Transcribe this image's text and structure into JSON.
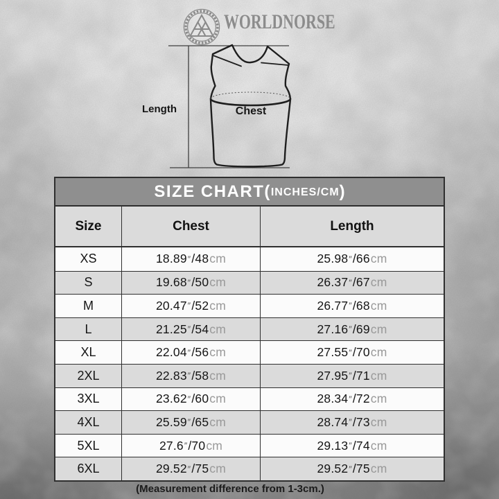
{
  "brand": {
    "name": "WORLDNORSE",
    "logo": "valknut-icon"
  },
  "diagram": {
    "length_label": "Length",
    "chest_label": "Chest"
  },
  "size_chart": {
    "title_main": "SIZE CHART(",
    "title_small": "INCHES/CM",
    "title_close": ")",
    "columns": [
      "Size",
      "Chest",
      "Length"
    ],
    "units": {
      "inch_mark": "″",
      "cm": "cm"
    },
    "rows": [
      {
        "size": "XS",
        "chest_in": "18.89",
        "chest_cm": "48",
        "length_in": "25.98",
        "length_cm": "66"
      },
      {
        "size": "S",
        "chest_in": "19.68",
        "chest_cm": "50",
        "length_in": "26.37",
        "length_cm": "67"
      },
      {
        "size": "M",
        "chest_in": "20.47",
        "chest_cm": "52",
        "length_in": "26.77",
        "length_cm": "68"
      },
      {
        "size": "L",
        "chest_in": "21.25",
        "chest_cm": "54",
        "length_in": "27.16",
        "length_cm": "69"
      },
      {
        "size": "XL",
        "chest_in": "22.04",
        "chest_cm": "56",
        "length_in": "27.55",
        "length_cm": "70"
      },
      {
        "size": "2XL",
        "chest_in": "22.83",
        "chest_cm": "58",
        "length_in": "27.95",
        "length_cm": "71"
      },
      {
        "size": "3XL",
        "chest_in": "23.62",
        "chest_cm": "60",
        "length_in": "28.34",
        "length_cm": "72"
      },
      {
        "size": "4XL",
        "chest_in": "25.59",
        "chest_cm": "65",
        "length_in": "28.74",
        "length_cm": "73"
      },
      {
        "size": "5XL",
        "chest_in": "27.6",
        "chest_cm": "70",
        "length_in": "29.13",
        "length_cm": "74"
      },
      {
        "size": "6XL",
        "chest_in": "29.52",
        "chest_cm": "75",
        "length_in": "29.52",
        "length_cm": "75"
      }
    ]
  },
  "footer": {
    "note": "(Measurement difference from 1-3cm.)"
  },
  "colors": {
    "table_title_bg": "#8f8f8f",
    "row_bg": "#fbfbfb",
    "row_alt_bg": "#dbdbdb",
    "border": "#2e2e2e",
    "cm_text": "#999999",
    "brand_gray": "#8c8c8c",
    "paper": "#cdcdcd"
  },
  "chart_data": {
    "type": "table",
    "title": "SIZE CHART(INCHES/CM)",
    "columns": [
      "Size",
      "Chest",
      "Length"
    ],
    "rows": [
      [
        "XS",
        "18.89″/48cm",
        "25.98″/66cm"
      ],
      [
        "S",
        "19.68″/50cm",
        "26.37″/67cm"
      ],
      [
        "M",
        "20.47″/52cm",
        "26.77″/68cm"
      ],
      [
        "L",
        "21.25″/54cm",
        "27.16″/69cm"
      ],
      [
        "XL",
        "22.04″/56cm",
        "27.55″/70cm"
      ],
      [
        "2XL",
        "22.83″/58cm",
        "27.95″/71cm"
      ],
      [
        "3XL",
        "23.62″/60cm",
        "28.34″/72cm"
      ],
      [
        "4XL",
        "25.59″/65cm",
        "28.74″/73cm"
      ],
      [
        "5XL",
        "27.6″/70cm",
        "29.13″/74cm"
      ],
      [
        "6XL",
        "29.52″/75cm",
        "29.52″/75cm"
      ]
    ],
    "footnote": "(Measurement difference from 1-3cm.)"
  }
}
